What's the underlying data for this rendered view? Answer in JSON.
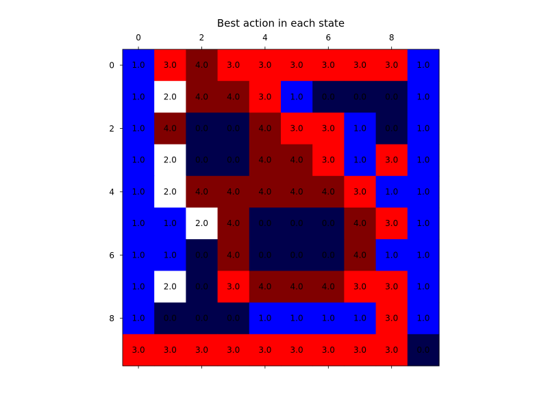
{
  "chart_data": {
    "type": "heatmap",
    "title": "Best action in each state",
    "xlabel": "",
    "ylabel": "",
    "x_tick_labels": [
      "0",
      "2",
      "4",
      "6",
      "8"
    ],
    "y_tick_labels": [
      "0",
      "2",
      "4",
      "6",
      "8"
    ],
    "x_ticks_position": "top-and-bottom",
    "grid": false,
    "colormap": "seismic",
    "value_range": [
      0.0,
      4.0
    ],
    "color_scale": [
      {
        "value": 0.0,
        "color": "#00004c"
      },
      {
        "value": 1.0,
        "color": "#0000ff"
      },
      {
        "value": 2.0,
        "color": "#ffffff"
      },
      {
        "value": 3.0,
        "color": "#ff0000"
      },
      {
        "value": 4.0,
        "color": "#800000"
      }
    ],
    "values": [
      [
        1.0,
        3.0,
        4.0,
        3.0,
        3.0,
        3.0,
        3.0,
        3.0,
        3.0,
        1.0
      ],
      [
        1.0,
        2.0,
        4.0,
        4.0,
        3.0,
        1.0,
        0.0,
        0.0,
        0.0,
        1.0
      ],
      [
        1.0,
        4.0,
        0.0,
        0.0,
        4.0,
        3.0,
        3.0,
        1.0,
        0.0,
        1.0
      ],
      [
        1.0,
        2.0,
        0.0,
        0.0,
        4.0,
        4.0,
        3.0,
        1.0,
        3.0,
        1.0
      ],
      [
        1.0,
        2.0,
        4.0,
        4.0,
        4.0,
        4.0,
        4.0,
        3.0,
        1.0,
        1.0
      ],
      [
        1.0,
        1.0,
        2.0,
        4.0,
        0.0,
        0.0,
        0.0,
        4.0,
        3.0,
        1.0
      ],
      [
        1.0,
        1.0,
        0.0,
        4.0,
        0.0,
        0.0,
        0.0,
        4.0,
        1.0,
        1.0
      ],
      [
        1.0,
        2.0,
        0.0,
        3.0,
        4.0,
        4.0,
        4.0,
        3.0,
        3.0,
        1.0
      ],
      [
        1.0,
        0.0,
        0.0,
        0.0,
        1.0,
        1.0,
        1.0,
        1.0,
        3.0,
        1.0
      ],
      [
        3.0,
        3.0,
        3.0,
        3.0,
        3.0,
        3.0,
        3.0,
        3.0,
        3.0,
        0.0
      ]
    ],
    "cell_labels": [
      [
        "1.0",
        "3.0",
        "4.0",
        "3.0",
        "3.0",
        "3.0",
        "3.0",
        "3.0",
        "3.0",
        "1.0"
      ],
      [
        "1.0",
        "2.0",
        "4.0",
        "4.0",
        "3.0",
        "1.0",
        "0.0",
        "0.0",
        "0.0",
        "1.0"
      ],
      [
        "1.0",
        "4.0",
        "0.0",
        "0.0",
        "4.0",
        "3.0",
        "3.0",
        "1.0",
        "0.0",
        "1.0"
      ],
      [
        "1.0",
        "2.0",
        "0.0",
        "0.0",
        "4.0",
        "4.0",
        "3.0",
        "1.0",
        "3.0",
        "1.0"
      ],
      [
        "1.0",
        "2.0",
        "4.0",
        "4.0",
        "4.0",
        "4.0",
        "4.0",
        "3.0",
        "1.0",
        "1.0"
      ],
      [
        "1.0",
        "1.0",
        "2.0",
        "4.0",
        "0.0",
        "0.0",
        "0.0",
        "4.0",
        "3.0",
        "1.0"
      ],
      [
        "1.0",
        "1.0",
        "0.0",
        "4.0",
        "0.0",
        "0.0",
        "0.0",
        "4.0",
        "1.0",
        "1.0"
      ],
      [
        "1.0",
        "2.0",
        "0.0",
        "3.0",
        "4.0",
        "4.0",
        "4.0",
        "3.0",
        "3.0",
        "1.0"
      ],
      [
        "1.0",
        "0.0",
        "0.0",
        "0.0",
        "1.0",
        "1.0",
        "1.0",
        "1.0",
        "3.0",
        "1.0"
      ],
      [
        "3.0",
        "3.0",
        "3.0",
        "3.0",
        "3.0",
        "3.0",
        "3.0",
        "3.0",
        "3.0",
        "0.0"
      ]
    ]
  }
}
